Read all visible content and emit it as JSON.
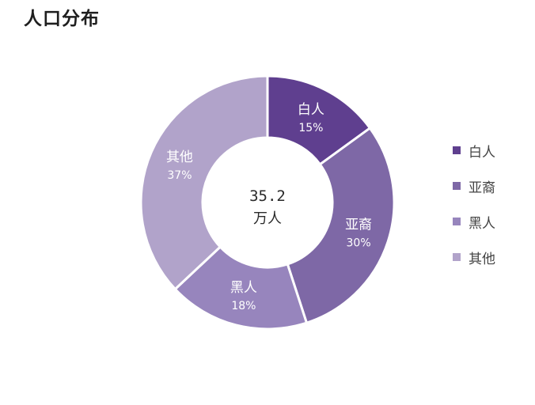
{
  "chart_data": {
    "type": "pie",
    "title": "人口分布",
    "categories": [
      "白人",
      "亚裔",
      "黑人",
      "其他"
    ],
    "values": [
      15,
      30,
      18,
      37
    ],
    "value_labels": [
      "15%",
      "30%",
      "18%",
      "37%"
    ],
    "center_value": "35.2",
    "center_unit": "万人",
    "colors": [
      "#5f3f8f",
      "#7e68a6",
      "#9785bd",
      "#b1a3ca"
    ],
    "legend_position": "right",
    "donut": true
  }
}
